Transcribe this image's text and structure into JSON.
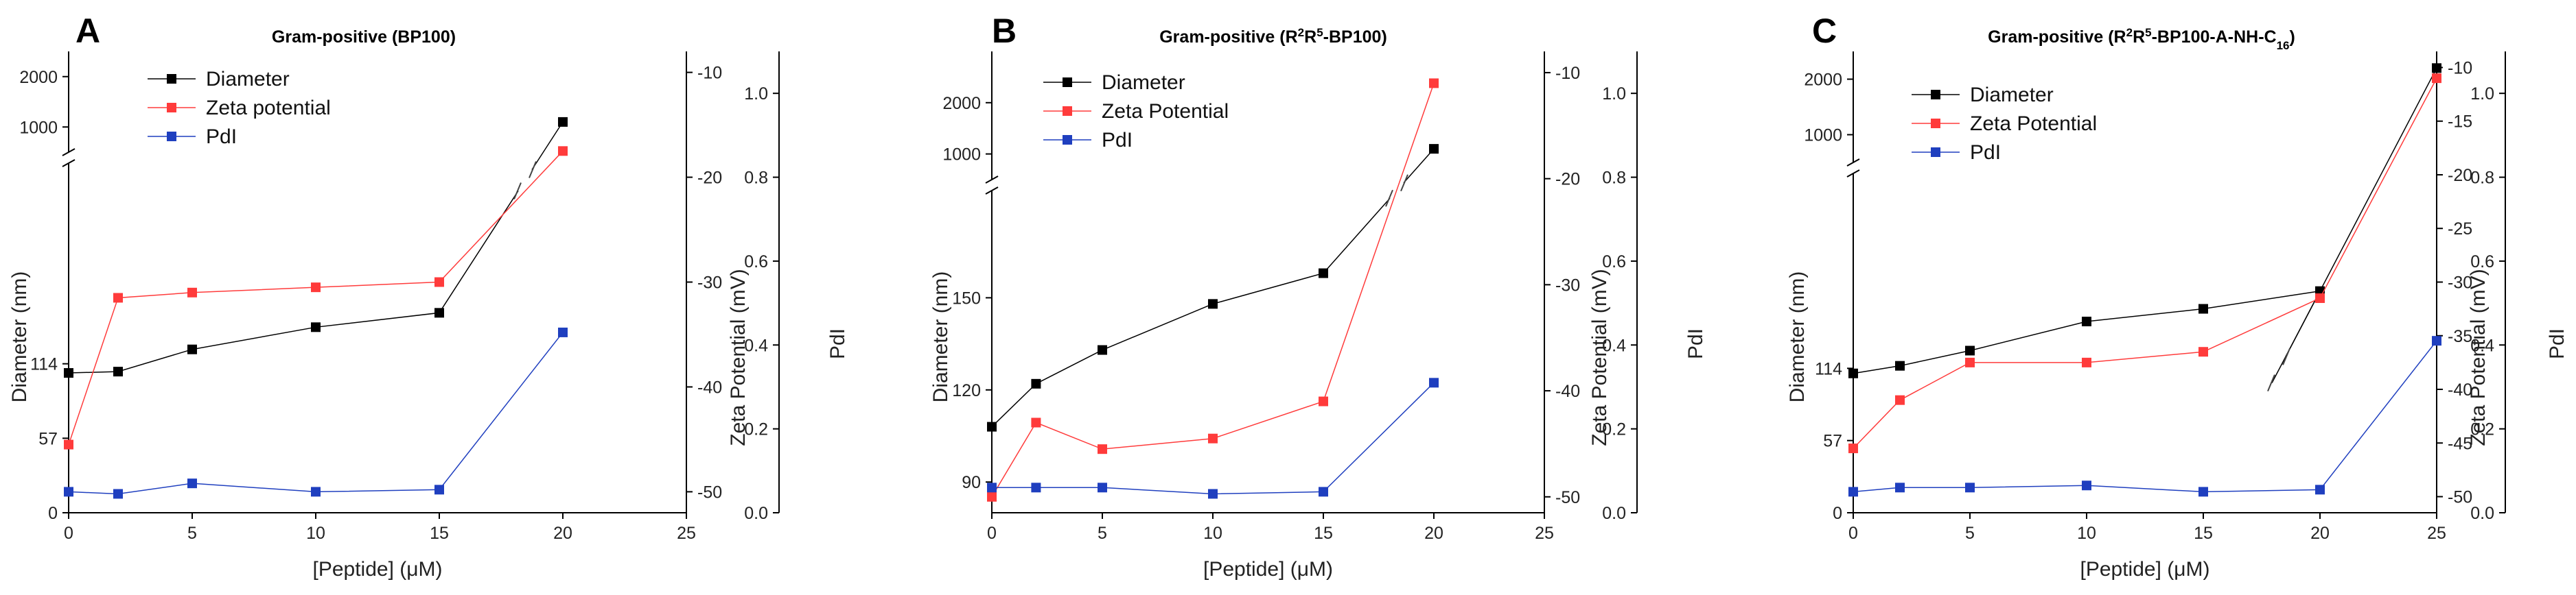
{
  "chart_data": [
    {
      "panel": "A",
      "type": "line",
      "title": "Gram-positive (BP100)",
      "title_parts": [
        {
          "t": "Gram-positive (BP100)",
          "s": "normal"
        }
      ],
      "xlabel": "[Peptide] (μM)",
      "ylabel": "Diameter (nm)",
      "y2label": "Zeta Potential (mV)",
      "y3label": "PdI",
      "xlim": [
        0,
        25
      ],
      "xticks": [
        0,
        5,
        10,
        15,
        20,
        25
      ],
      "left_axis": {
        "lower": {
          "range": [
            0,
            256
          ],
          "ticks": [
            0,
            57,
            114
          ]
        },
        "upper": {
          "range": [
            500,
            2500
          ],
          "ticks": [
            1000,
            2000
          ]
        }
      },
      "zeta_axis": {
        "range": [
          -52,
          -8
        ],
        "ticks": [
          -50,
          -40,
          -30,
          -20,
          -10
        ]
      },
      "pdi_axis": {
        "range": [
          0,
          1.1
        ],
        "ticks": [
          0,
          0.2,
          0.4,
          0.6,
          0.8,
          1.0
        ]
      },
      "series": [
        {
          "name": "Diameter",
          "color": "#000000",
          "x": [
            0,
            2,
            5,
            10,
            15,
            20
          ],
          "values": [
            107,
            108,
            125,
            142,
            153,
            1100
          ]
        },
        {
          "name": "Zeta potential",
          "color": "#ff3b3b",
          "x": [
            0,
            2,
            5,
            10,
            15,
            20
          ],
          "values": [
            -45.5,
            -31.5,
            -31,
            -30.5,
            -30,
            -17.5
          ]
        },
        {
          "name": "PdI",
          "color": "#1f3fbf",
          "x": [
            0,
            2,
            5,
            10,
            15,
            20
          ],
          "values": [
            0.05,
            0.045,
            0.07,
            0.05,
            0.055,
            0.43
          ]
        }
      ],
      "legend": [
        "Diameter",
        "Zeta potential",
        "PdI"
      ]
    },
    {
      "panel": "B",
      "type": "line",
      "title": "Gram-positive (R2R5-BP100)",
      "title_parts": [
        {
          "t": "Gram-positive (R",
          "s": "normal"
        },
        {
          "t": "2",
          "s": "sup"
        },
        {
          "t": "R",
          "s": "normal"
        },
        {
          "t": "5",
          "s": "sup"
        },
        {
          "t": "-BP100)",
          "s": "normal"
        }
      ],
      "xlabel": "[Peptide] (μM)",
      "ylabel": "Diameter (nm)",
      "y2label": "Zeta Potential (mV)",
      "y3label": "PdI",
      "xlim": [
        0,
        25
      ],
      "xticks": [
        0,
        5,
        10,
        15,
        20,
        25
      ],
      "left_axis": {
        "lower": {
          "range": [
            80,
            180
          ],
          "ticks": [
            90,
            120,
            150
          ]
        },
        "upper": {
          "range": [
            500,
            3000
          ],
          "ticks": [
            1000,
            2000
          ]
        }
      },
      "zeta_axis": {
        "range": [
          -51.5,
          -8
        ],
        "ticks": [
          -50,
          -40,
          -30,
          -20,
          -10
        ]
      },
      "pdi_axis": {
        "range": [
          0,
          1.1
        ],
        "ticks": [
          0,
          0.2,
          0.4,
          0.6,
          0.8,
          1.0
        ]
      },
      "series": [
        {
          "name": "Diameter",
          "color": "#000000",
          "x": [
            0,
            2,
            5,
            10,
            15,
            20
          ],
          "values": [
            108,
            122,
            133,
            148,
            158,
            1100
          ]
        },
        {
          "name": "Zeta Potential",
          "color": "#ff3b3b",
          "x": [
            0,
            2,
            5,
            10,
            15,
            20
          ],
          "values": [
            -50,
            -43,
            -45.5,
            -44.5,
            -41,
            -11
          ]
        },
        {
          "name": "PdI",
          "color": "#1f3fbf",
          "x": [
            0,
            2,
            5,
            10,
            15,
            20
          ],
          "values": [
            0.06,
            0.06,
            0.06,
            0.045,
            0.05,
            0.31
          ]
        }
      ],
      "legend": [
        "Diameter",
        "Zeta Potential",
        "PdI"
      ]
    },
    {
      "panel": "C",
      "type": "line",
      "title": "Gram-positive (R2R5-BP100-A-NH-C16)",
      "title_parts": [
        {
          "t": "Gram-positive (R",
          "s": "normal"
        },
        {
          "t": "2",
          "s": "sup"
        },
        {
          "t": "R",
          "s": "normal"
        },
        {
          "t": "5",
          "s": "sup"
        },
        {
          "t": "-BP100-A-NH-C",
          "s": "normal"
        },
        {
          "t": "16",
          "s": "sub"
        },
        {
          "t": ")",
          "s": "normal"
        }
      ],
      "xlabel": "[Peptide] (μM)",
      "ylabel": "Diameter (nm)",
      "y2label": "Zeta Potential (mV)",
      "y3label": "PdI",
      "xlim": [
        0,
        25
      ],
      "xticks": [
        0,
        5,
        10,
        15,
        20,
        25
      ],
      "left_axis": {
        "lower": {
          "range": [
            0,
            256
          ],
          "ticks": [
            0,
            57,
            114
          ]
        },
        "upper": {
          "range": [
            500,
            2500
          ],
          "ticks": [
            1000,
            2000
          ]
        }
      },
      "zeta_axis": {
        "range": [
          -51.5,
          -8.5
        ],
        "ticks": [
          -50,
          -45,
          -40,
          -35,
          -30,
          -25,
          -20,
          -15,
          -10
        ]
      },
      "pdi_axis": {
        "range": [
          0,
          1.1
        ],
        "ticks": [
          0,
          0.2,
          0.4,
          0.6,
          0.8,
          1.0
        ]
      },
      "series": [
        {
          "name": "Diameter",
          "color": "#000000",
          "x": [
            0,
            2,
            5,
            10,
            15,
            20,
            25
          ],
          "values": [
            110,
            116,
            128,
            151,
            161,
            175,
            2200
          ]
        },
        {
          "name": "Zeta Potential",
          "color": "#ff3b3b",
          "x": [
            0,
            2,
            5,
            10,
            15,
            20,
            25
          ],
          "values": [
            -45.5,
            -41,
            -37.5,
            -37.5,
            -36.5,
            -31.5,
            -11
          ]
        },
        {
          "name": "PdI",
          "color": "#1f3fbf",
          "x": [
            0,
            2,
            5,
            10,
            15,
            20,
            25
          ],
          "values": [
            0.05,
            0.06,
            0.06,
            0.065,
            0.05,
            0.055,
            0.41
          ]
        }
      ],
      "legend": [
        "Diameter",
        "Zeta Potential",
        "PdI"
      ]
    }
  ]
}
